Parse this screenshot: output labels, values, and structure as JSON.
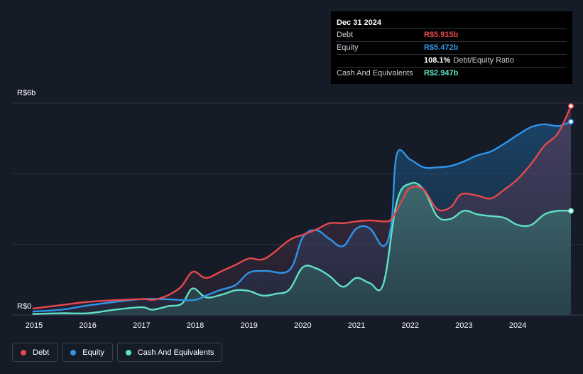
{
  "tooltip": {
    "date": "Dec 31 2024",
    "rows": [
      {
        "label": "Debt",
        "value": "R$5.915b",
        "color": "#e5484d"
      },
      {
        "label": "Equity",
        "value": "R$5.472b",
        "color": "#2f94e8"
      },
      {
        "label": "",
        "value": "108.1%",
        "sub": "Debt/Equity Ratio",
        "color": "#ffffff"
      },
      {
        "label": "Cash And Equivalents",
        "value": "R$2.947b",
        "color": "#5fe0c4"
      }
    ]
  },
  "legend": [
    {
      "label": "Debt",
      "color": "#e5484d"
    },
    {
      "label": "Equity",
      "color": "#2f94e8"
    },
    {
      "label": "Cash And Equivalents",
      "color": "#5fe0c4"
    }
  ],
  "chart_data": {
    "type": "area",
    "y_top_label": "R$6b",
    "y_bottom_label": "R$0",
    "ylim": [
      0,
      6
    ],
    "xlim": [
      2015,
      2025
    ],
    "x_ticks": [
      "2015",
      "2016",
      "2017",
      "2018",
      "2019",
      "2020",
      "2021",
      "2022",
      "2023",
      "2024"
    ],
    "series": [
      {
        "name": "Debt",
        "color": "#e5484d",
        "x": [
          2014.97,
          2015.5,
          2016.0,
          2016.5,
          2017.0,
          2017.3,
          2017.7,
          2017.95,
          2018.2,
          2018.5,
          2018.75,
          2019.0,
          2019.3,
          2019.75,
          2020.0,
          2020.25,
          2020.5,
          2020.75,
          2021.0,
          2021.25,
          2021.5,
          2021.65,
          2021.85,
          2022.0,
          2022.25,
          2022.5,
          2022.75,
          2022.95,
          2023.25,
          2023.5,
          2023.75,
          2024.0,
          2024.25,
          2024.5,
          2024.75,
          2024.99
        ],
        "y": [
          0.18,
          0.28,
          0.37,
          0.42,
          0.45,
          0.45,
          0.75,
          1.22,
          1.05,
          1.25,
          1.42,
          1.6,
          1.6,
          2.12,
          2.27,
          2.42,
          2.6,
          2.6,
          2.65,
          2.68,
          2.65,
          2.72,
          3.25,
          3.6,
          3.55,
          3.0,
          3.05,
          3.42,
          3.38,
          3.3,
          3.55,
          3.85,
          4.28,
          4.8,
          5.15,
          5.915
        ]
      },
      {
        "name": "Equity",
        "color": "#2f94e8",
        "x": [
          2014.97,
          2015.5,
          2016.0,
          2016.5,
          2017.0,
          2017.4,
          2017.95,
          2018.2,
          2018.45,
          2018.75,
          2019.0,
          2019.3,
          2019.75,
          2020.0,
          2020.25,
          2020.5,
          2020.75,
          2021.0,
          2021.25,
          2021.5,
          2021.65,
          2021.75,
          2022.0,
          2022.25,
          2022.5,
          2022.75,
          2023.0,
          2023.25,
          2023.5,
          2023.75,
          2024.0,
          2024.25,
          2024.5,
          2024.75,
          2024.99
        ],
        "y": [
          0.1,
          0.15,
          0.27,
          0.37,
          0.45,
          0.45,
          0.42,
          0.55,
          0.7,
          0.85,
          1.2,
          1.25,
          1.27,
          2.2,
          2.4,
          2.15,
          1.95,
          2.45,
          2.45,
          1.95,
          2.6,
          4.55,
          4.4,
          4.18,
          4.18,
          4.22,
          4.35,
          4.52,
          4.63,
          4.85,
          5.1,
          5.32,
          5.4,
          5.35,
          5.472
        ]
      },
      {
        "name": "Cash And Equivalents",
        "color": "#5fe0c4",
        "x": [
          2014.97,
          2015.5,
          2016.0,
          2016.5,
          2017.0,
          2017.2,
          2017.5,
          2017.75,
          2017.95,
          2018.2,
          2018.5,
          2018.75,
          2019.0,
          2019.25,
          2019.5,
          2019.75,
          2020.0,
          2020.25,
          2020.5,
          2020.75,
          2021.0,
          2021.25,
          2021.5,
          2021.75,
          2022.0,
          2022.25,
          2022.5,
          2022.75,
          2023.0,
          2023.25,
          2023.5,
          2023.75,
          2024.0,
          2024.25,
          2024.5,
          2024.75,
          2024.99
        ],
        "y": [
          0.03,
          0.05,
          0.05,
          0.15,
          0.22,
          0.15,
          0.25,
          0.32,
          0.75,
          0.5,
          0.58,
          0.7,
          0.68,
          0.55,
          0.6,
          0.72,
          1.35,
          1.32,
          1.1,
          0.8,
          1.05,
          0.9,
          0.88,
          3.2,
          3.72,
          3.55,
          2.8,
          2.72,
          2.95,
          2.85,
          2.8,
          2.75,
          2.55,
          2.55,
          2.85,
          2.95,
          2.947
        ]
      }
    ],
    "grid": true
  }
}
